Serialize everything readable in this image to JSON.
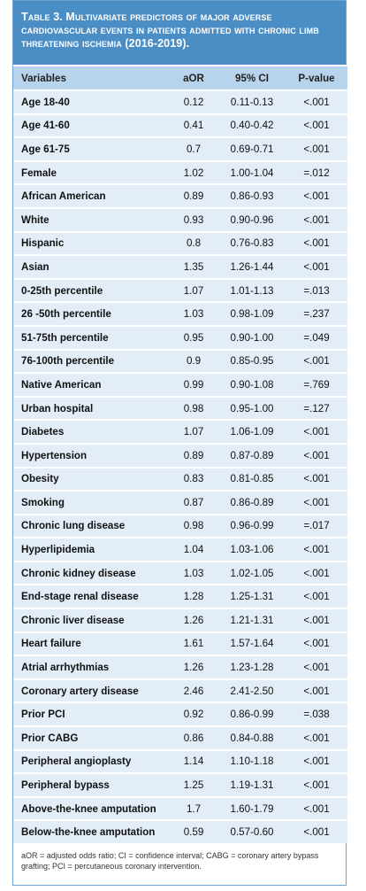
{
  "header": {
    "title": "Table 3. Multivariate predictors of major adverse cardiovascular events in patients admitted with chronic limb threatening ischemia (2016-2019)."
  },
  "table": {
    "columns": [
      "Variables",
      "aOR",
      "95% CI",
      "P-value"
    ],
    "rows": [
      [
        "Age 18-40",
        "0.12",
        "0.11-0.13",
        "<.001"
      ],
      [
        "Age 41-60",
        "0.41",
        "0.40-0.42",
        "<.001"
      ],
      [
        "Age 61-75",
        "0.7",
        "0.69-0.71",
        "<.001"
      ],
      [
        "Female",
        "1.02",
        "1.00-1.04",
        "=.012"
      ],
      [
        "African American",
        "0.89",
        "0.86-0.93",
        "<.001"
      ],
      [
        "White",
        "0.93",
        "0.90-0.96",
        "<.001"
      ],
      [
        "Hispanic",
        "0.8",
        "0.76-0.83",
        "<.001"
      ],
      [
        "Asian",
        "1.35",
        "1.26-1.44",
        "<.001"
      ],
      [
        "0-25th percentile",
        "1.07",
        "1.01-1.13",
        "=.013"
      ],
      [
        "26 -50th percentile",
        "1.03",
        "0.98-1.09",
        "=.237"
      ],
      [
        "51-75th percentile",
        "0.95",
        "0.90-1.00",
        "=.049"
      ],
      [
        "76-100th percentile",
        "0.9",
        "0.85-0.95",
        "<.001"
      ],
      [
        "Native American",
        "0.99",
        "0.90-1.08",
        "=.769"
      ],
      [
        "Urban hospital",
        "0.98",
        "0.95-1.00",
        "=.127"
      ],
      [
        "Diabetes",
        "1.07",
        "1.06-1.09",
        "<.001"
      ],
      [
        "Hypertension",
        "0.89",
        "0.87-0.89",
        "<.001"
      ],
      [
        "Obesity",
        "0.83",
        "0.81-0.85",
        "<.001"
      ],
      [
        "Smoking",
        "0.87",
        "0.86-0.89",
        "<.001"
      ],
      [
        "Chronic lung disease",
        "0.98",
        "0.96-0.99",
        "=.017"
      ],
      [
        "Hyperlipidemia",
        "1.04",
        "1.03-1.06",
        "<.001"
      ],
      [
        "Chronic kidney disease",
        "1.03",
        "1.02-1.05",
        "<.001"
      ],
      [
        "End-stage renal disease",
        "1.28",
        "1.25-1.31",
        "<.001"
      ],
      [
        "Chronic liver disease",
        "1.26",
        "1.21-1.31",
        "<.001"
      ],
      [
        "Heart failure",
        "1.61",
        "1.57-1.64",
        "<.001"
      ],
      [
        "Atrial arrhythmias",
        "1.26",
        "1.23-1.28",
        "<.001"
      ],
      [
        "Coronary artery disease",
        "2.46",
        "2.41-2.50",
        "<.001"
      ],
      [
        "Prior PCI",
        "0.92",
        "0.86-0.99",
        "=.038"
      ],
      [
        "Prior CABG",
        "0.86",
        "0.84-0.88",
        "<.001"
      ],
      [
        "Peripheral angioplasty",
        "1.14",
        "1.10-1.18",
        "<.001"
      ],
      [
        "Peripheral bypass",
        "1.25",
        "1.19-1.31",
        "<.001"
      ],
      [
        "Above-the-knee amputation",
        "1.7",
        "1.60-1.79",
        "<.001"
      ],
      [
        "Below-the-knee amputation",
        "0.59",
        "0.57-0.60",
        "<.001"
      ]
    ]
  },
  "footnote": "aOR = adjusted odds ratio; CI = confidence interval; CABG = coronary artery bypass grafting; PCI = percutaneous coronary intervention."
}
